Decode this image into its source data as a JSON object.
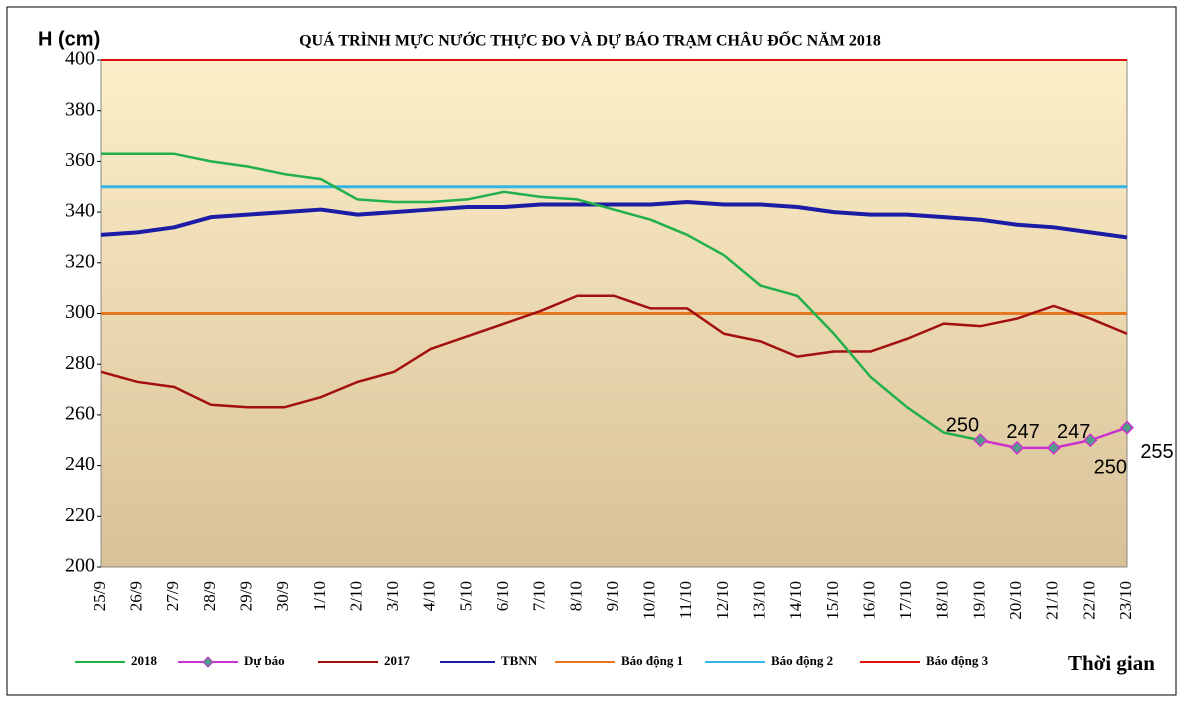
{
  "chart_data": {
    "type": "line",
    "title": "QUÁ TRÌNH MỰC NƯỚC THỰC ĐO VÀ DỰ BÁO TRẠM CHÂU ĐỐC NĂM 2018",
    "y_label": "H (cm)",
    "x_label": "Thời gian",
    "categories": [
      "25/9",
      "26/9",
      "27/9",
      "28/9",
      "29/9",
      "30/9",
      "1/10",
      "2/10",
      "3/10",
      "4/10",
      "5/10",
      "6/10",
      "7/10",
      "8/10",
      "9/10",
      "10/10",
      "11/10",
      "12/10",
      "13/10",
      "14/10",
      "15/10",
      "16/10",
      "17/10",
      "18/10",
      "19/10",
      "20/10",
      "21/10",
      "22/10",
      "23/10"
    ],
    "ylim": [
      200,
      400
    ],
    "yticks": [
      200,
      220,
      240,
      260,
      280,
      300,
      320,
      340,
      360,
      380,
      400
    ],
    "series": [
      {
        "name": "2018",
        "color": "#22b04b",
        "values": [
          363,
          363,
          363,
          360,
          358,
          355,
          353,
          345,
          344,
          344,
          345,
          348,
          346,
          345,
          341,
          337,
          331,
          323,
          311,
          307,
          292,
          275,
          263,
          253,
          250,
          null,
          null,
          null,
          null
        ]
      },
      {
        "name": "Dự báo",
        "color": "#cc33cc",
        "marker": "diamond",
        "marker_color": "#4f9c8c",
        "values": [
          null,
          null,
          null,
          null,
          null,
          null,
          null,
          null,
          null,
          null,
          null,
          null,
          null,
          null,
          null,
          null,
          null,
          null,
          null,
          null,
          null,
          null,
          null,
          null,
          250,
          247,
          247,
          250,
          255
        ],
        "data_labels": true
      },
      {
        "name": "2017",
        "color": "#a31010",
        "values": [
          277,
          273,
          271,
          264,
          263,
          263,
          267,
          273,
          277,
          286,
          291,
          296,
          301,
          307,
          307,
          302,
          302,
          292,
          289,
          283,
          285,
          285,
          290,
          296,
          295,
          298,
          303,
          298,
          292
        ]
      },
      {
        "name": "TBNN",
        "color": "#1c1ca6",
        "width": 4,
        "values": [
          331,
          332,
          334,
          338,
          339,
          340,
          341,
          339,
          340,
          341,
          342,
          342,
          343,
          343,
          343,
          343,
          344,
          343,
          343,
          342,
          340,
          339,
          339,
          338,
          337,
          335,
          334,
          332,
          330
        ]
      },
      {
        "name": "Báo động 1",
        "color": "#e87722",
        "width": 3,
        "values": [
          300,
          300,
          300,
          300,
          300,
          300,
          300,
          300,
          300,
          300,
          300,
          300,
          300,
          300,
          300,
          300,
          300,
          300,
          300,
          300,
          300,
          300,
          300,
          300,
          300,
          300,
          300,
          300,
          300
        ]
      },
      {
        "name": "Báo động 2",
        "color": "#33b5e5",
        "width": 3,
        "values": [
          350,
          350,
          350,
          350,
          350,
          350,
          350,
          350,
          350,
          350,
          350,
          350,
          350,
          350,
          350,
          350,
          350,
          350,
          350,
          350,
          350,
          350,
          350,
          350,
          350,
          350,
          350,
          350,
          350
        ]
      },
      {
        "name": "Báo động 3",
        "color": "#e01010",
        "width": 2,
        "values": [
          400,
          400,
          400,
          400,
          400,
          400,
          400,
          400,
          400,
          400,
          400,
          400,
          400,
          400,
          400,
          400,
          400,
          400,
          400,
          400,
          400,
          400,
          400,
          400,
          400,
          400,
          400,
          400,
          400
        ]
      }
    ]
  }
}
